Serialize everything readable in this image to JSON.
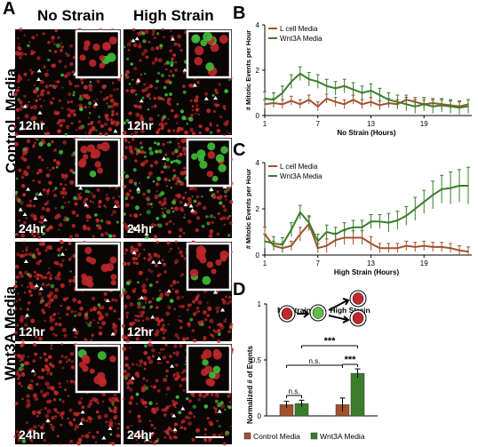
{
  "panel_letters": {
    "a": "A",
    "b": "B",
    "c": "C",
    "d": "D"
  },
  "panel_a": {
    "col_no_strain": "No Strain",
    "col_high_strain": "High Strain",
    "row_control": "Control  Media",
    "row_wnt3a": "Wnt3A Media",
    "time_12": "12hr",
    "time_24": "24hr",
    "colors": {
      "red_cells": "#c0282a",
      "green_cells": "#3fbf3a",
      "background": "#0b0606"
    }
  },
  "chart_data": [
    {
      "type": "line",
      "panel": "B",
      "xlabel": "No Strain (Hours)",
      "ylabel": "# Mitotic Events per Hour",
      "xticks": [
        1,
        7,
        13,
        19
      ],
      "yticks": [
        0,
        2,
        4
      ],
      "xlim": [
        1,
        24
      ],
      "ylim": [
        0,
        4
      ],
      "x": [
        1,
        2,
        3,
        4,
        5,
        6,
        7,
        8,
        9,
        10,
        11,
        12,
        13,
        14,
        15,
        16,
        17,
        18,
        19,
        20,
        21,
        22,
        23,
        24
      ],
      "series": [
        {
          "name": "L cell Media",
          "color": "#a0522d",
          "values": [
            0.5,
            0.55,
            0.5,
            0.65,
            0.5,
            0.7,
            0.4,
            0.75,
            0.6,
            0.5,
            0.7,
            0.5,
            0.6,
            0.45,
            0.55,
            0.5,
            0.7,
            0.6,
            0.5,
            0.55,
            0.5,
            0.45,
            0.4,
            0.5
          ],
          "errors": [
            0.2,
            0.2,
            0.2,
            0.2,
            0.2,
            0.2,
            0.2,
            0.2,
            0.2,
            0.2,
            0.2,
            0.2,
            0.2,
            0.2,
            0.2,
            0.2,
            0.2,
            0.2,
            0.2,
            0.2,
            0.2,
            0.2,
            0.2,
            0.2
          ]
        },
        {
          "name": "Wnt3A Media",
          "color": "#3a7d2a",
          "values": [
            0.75,
            0.7,
            1.0,
            1.5,
            1.85,
            1.6,
            1.5,
            1.3,
            1.2,
            1.3,
            1.15,
            1.0,
            1.1,
            0.9,
            0.7,
            0.6,
            0.5,
            0.4,
            0.5,
            0.4,
            0.45,
            0.4,
            0.35,
            0.4
          ],
          "errors": [
            0.3,
            0.3,
            0.3,
            0.3,
            0.3,
            0.3,
            0.3,
            0.3,
            0.3,
            0.3,
            0.3,
            0.3,
            0.3,
            0.3,
            0.3,
            0.3,
            0.3,
            0.3,
            0.3,
            0.3,
            0.3,
            0.3,
            0.3,
            0.3
          ]
        }
      ]
    },
    {
      "type": "line",
      "panel": "C",
      "xlabel": "High Strain (Hours)",
      "ylabel": "# Mitotic Events per Hour",
      "xticks": [
        1,
        7,
        13,
        19
      ],
      "yticks": [
        0,
        2,
        4
      ],
      "xlim": [
        1,
        24
      ],
      "ylim": [
        0,
        4
      ],
      "x": [
        1,
        2,
        3,
        4,
        5,
        6,
        7,
        8,
        9,
        10,
        11,
        12,
        13,
        14,
        15,
        16,
        17,
        18,
        19,
        20,
        21,
        22,
        23,
        24
      ],
      "series": [
        {
          "name": "L cell Media",
          "color": "#a0522d",
          "values": [
            0.9,
            0.4,
            0.3,
            0.4,
            0.9,
            1.35,
            0.3,
            0.4,
            0.65,
            0.75,
            0.75,
            0.75,
            0.5,
            0.3,
            0.3,
            0.3,
            0.4,
            0.35,
            0.4,
            0.35,
            0.35,
            0.3,
            0.2,
            0.15
          ],
          "errors": [
            0.3,
            0.2,
            0.2,
            0.2,
            0.3,
            0.3,
            0.2,
            0.3,
            0.3,
            0.3,
            0.3,
            0.3,
            0.3,
            0.2,
            0.2,
            0.2,
            0.2,
            0.2,
            0.2,
            0.2,
            0.2,
            0.2,
            0.2,
            0.2
          ]
        },
        {
          "name": "Wnt3A Media",
          "color": "#3a7d2a",
          "values": [
            0.6,
            0.5,
            0.45,
            1.1,
            1.85,
            1.4,
            0.6,
            1.0,
            0.9,
            1.1,
            1.2,
            1.2,
            1.45,
            1.45,
            1.4,
            1.5,
            1.7,
            2.0,
            2.3,
            2.6,
            2.85,
            2.9,
            3.0,
            3.0
          ],
          "errors": [
            0.3,
            0.3,
            0.3,
            0.3,
            0.3,
            0.3,
            0.3,
            0.3,
            0.3,
            0.3,
            0.3,
            0.3,
            0.3,
            0.3,
            0.4,
            0.4,
            0.4,
            0.5,
            0.5,
            0.6,
            0.6,
            0.7,
            0.7,
            0.8
          ]
        }
      ]
    },
    {
      "type": "bar",
      "panel": "D",
      "ylabel": "Normalized # of Events",
      "categories": [
        "No Strain",
        "High Strain"
      ],
      "yticks": [
        0,
        0.5,
        1
      ],
      "ylim": [
        0,
        1
      ],
      "series": [
        {
          "name": "Control Media",
          "color": "#a0522d",
          "values": [
            0.1,
            0.1
          ],
          "errors": [
            0.03,
            0.06
          ]
        },
        {
          "name": "Wnt3A Media",
          "color": "#3a7d2a",
          "values": [
            0.11,
            0.38
          ],
          "errors": [
            0.03,
            0.04
          ]
        }
      ],
      "annotations": {
        "ns_within": "n.s.",
        "ns_between": "n.s.",
        "sig_cross": "***",
        "sig_high": "***"
      }
    }
  ]
}
